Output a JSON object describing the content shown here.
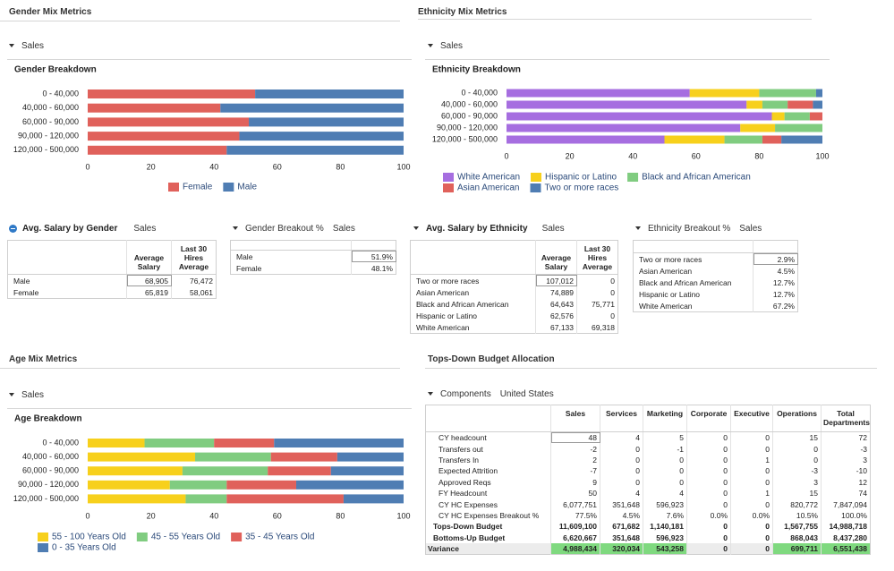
{
  "sections": {
    "gender": "Gender Mix Metrics",
    "ethnicity": "Ethnicity Mix Metrics",
    "age": "Age Mix Metrics",
    "budget": "Tops-Down Budget Allocation"
  },
  "filters": {
    "gender": "Sales",
    "ethnicity": "Sales",
    "age": "Sales"
  },
  "chart_data": [
    {
      "type": "bar",
      "orientation": "horizontal",
      "stacked": true,
      "title": "Gender Breakdown",
      "categories": [
        "0 - 40,000",
        "40,000 - 60,000",
        "60,000 - 90,000",
        "90,000 - 120,000",
        "120,000 - 500,000"
      ],
      "series": [
        {
          "name": "Female",
          "color": "#e0615b",
          "values": [
            53,
            42,
            51,
            48,
            44
          ]
        },
        {
          "name": "Male",
          "color": "#4f7db3",
          "values": [
            47,
            58,
            49,
            52,
            56
          ]
        }
      ],
      "xlim": [
        0,
        100
      ],
      "xticks": [
        0,
        20,
        40,
        60,
        80,
        100
      ]
    },
    {
      "type": "bar",
      "orientation": "horizontal",
      "stacked": true,
      "title": "Ethnicity Breakdown",
      "categories": [
        "0 - 40,000",
        "40,000 - 60,000",
        "60,000 - 90,000",
        "90,000 - 120,000",
        "120,000 - 500,000"
      ],
      "series": [
        {
          "name": "White American",
          "color": "#a66ee0",
          "values": [
            58,
            76,
            84,
            74,
            50
          ]
        },
        {
          "name": "Hispanic or Latino",
          "color": "#f7d01c",
          "values": [
            22,
            5,
            4,
            11,
            19
          ]
        },
        {
          "name": "Black and African American",
          "color": "#80cc80",
          "values": [
            18,
            8,
            8,
            15,
            12
          ]
        },
        {
          "name": "Asian American",
          "color": "#e0615b",
          "values": [
            0,
            8,
            4,
            0,
            6
          ]
        },
        {
          "name": "Two or more races",
          "color": "#4f7db3",
          "values": [
            2,
            3,
            0,
            0,
            13
          ]
        }
      ],
      "xlim": [
        0,
        100
      ],
      "xticks": [
        0,
        20,
        40,
        60,
        80,
        100
      ]
    },
    {
      "type": "bar",
      "orientation": "horizontal",
      "stacked": true,
      "title": "Age Breakdown",
      "categories": [
        "0 - 40,000",
        "40,000 - 60,000",
        "60,000 - 90,000",
        "90,000 - 120,000",
        "120,000 - 500,000"
      ],
      "series": [
        {
          "name": "55 - 100 Years Old",
          "color": "#f7d01c",
          "values": [
            18,
            34,
            30,
            26,
            31
          ]
        },
        {
          "name": "45 - 55 Years Old",
          "color": "#80cc80",
          "values": [
            22,
            24,
            27,
            18,
            13
          ]
        },
        {
          "name": "35 - 45 Years Old",
          "color": "#e0615b",
          "values": [
            19,
            21,
            20,
            22,
            37
          ]
        },
        {
          "name": "0 - 35 Years Old",
          "color": "#4f7db3",
          "values": [
            41,
            21,
            23,
            34,
            19
          ]
        }
      ],
      "xlim": [
        0,
        100
      ],
      "xticks": [
        0,
        20,
        40,
        60,
        80,
        100
      ]
    }
  ],
  "tables": [
    {
      "title": "Avg. Salary by Gender",
      "filter": "Sales",
      "columns": [
        "Average Salary",
        "Last 30 Hires Average"
      ],
      "rows": [
        {
          "label": "Male",
          "cells": [
            "68,905",
            "76,472"
          ]
        },
        {
          "label": "Female",
          "cells": [
            "65,819",
            "58,061"
          ]
        }
      ]
    },
    {
      "title": "Gender Breakout %",
      "filter": "Sales",
      "rows": [
        {
          "label": "Male",
          "cells": [
            "51.9%"
          ]
        },
        {
          "label": "Female",
          "cells": [
            "48.1%"
          ]
        }
      ]
    },
    {
      "title": "Avg. Salary by Ethnicity",
      "filter": "Sales",
      "columns": [
        "Average Salary",
        "Last 30 Hires Average"
      ],
      "rows": [
        {
          "label": "Two or more races",
          "cells": [
            "107,012",
            "0"
          ]
        },
        {
          "label": "Asian American",
          "cells": [
            "74,889",
            "0"
          ]
        },
        {
          "label": "Black and African American",
          "cells": [
            "64,643",
            "75,771"
          ]
        },
        {
          "label": "Hispanic or Latino",
          "cells": [
            "62,576",
            "0"
          ]
        },
        {
          "label": "White American",
          "cells": [
            "67,133",
            "69,318"
          ]
        }
      ]
    },
    {
      "title": "Ethnicity Breakout %",
      "filter": "Sales",
      "rows": [
        {
          "label": "Two or more races",
          "cells": [
            "2.9%"
          ]
        },
        {
          "label": "Asian American",
          "cells": [
            "4.5%"
          ]
        },
        {
          "label": "Black and African American",
          "cells": [
            "12.7%"
          ]
        },
        {
          "label": "Hispanic or Latino",
          "cells": [
            "12.7%"
          ]
        },
        {
          "label": "White American",
          "cells": [
            "67.2%"
          ]
        }
      ]
    }
  ],
  "budget": {
    "dimension": "Components",
    "filter": "United States",
    "columns": [
      "Sales",
      "Services",
      "Marketing",
      "Corporate",
      "Executive",
      "Operations",
      "Total Departments"
    ],
    "rows": [
      {
        "label": "CY headcount",
        "cells": [
          "48",
          "4",
          "5",
          "0",
          "0",
          "15",
          "72"
        ]
      },
      {
        "label": "Transfers out",
        "cells": [
          "-2",
          "0",
          "-1",
          "0",
          "0",
          "0",
          "-3"
        ]
      },
      {
        "label": "Transfers In",
        "cells": [
          "2",
          "0",
          "0",
          "0",
          "1",
          "0",
          "3"
        ]
      },
      {
        "label": "Expected Attrition",
        "cells": [
          "-7",
          "0",
          "0",
          "0",
          "0",
          "-3",
          "-10"
        ]
      },
      {
        "label": "Approved Reqs",
        "cells": [
          "9",
          "0",
          "0",
          "0",
          "0",
          "3",
          "12"
        ]
      },
      {
        "label": "FY Headcount",
        "cells": [
          "50",
          "4",
          "4",
          "0",
          "1",
          "15",
          "74"
        ]
      },
      {
        "label": "CY HC Expenses",
        "cells": [
          "6,077,751",
          "351,648",
          "596,923",
          "0",
          "0",
          "820,772",
          "7,847,094"
        ]
      },
      {
        "label": "CY HC Expenses Breakout %",
        "cells": [
          "77.5%",
          "4.5%",
          "7.6%",
          "0.0%",
          "0.0%",
          "10.5%",
          "100.0%"
        ]
      },
      {
        "label": "Tops-Down Budget",
        "bold": true,
        "cells": [
          "11,609,100",
          "671,682",
          "1,140,181",
          "0",
          "0",
          "1,567,755",
          "14,988,718"
        ]
      },
      {
        "label": "Bottoms-Up Budget",
        "bold": true,
        "cells": [
          "6,620,667",
          "351,648",
          "596,923",
          "0",
          "0",
          "868,043",
          "8,437,280"
        ]
      },
      {
        "label": "Variance",
        "bold": true,
        "highlight": "#7fd97f",
        "cells": [
          "4,988,434",
          "320,034",
          "543,258",
          "0",
          "0",
          "699,711",
          "6,551,438"
        ]
      }
    ]
  }
}
